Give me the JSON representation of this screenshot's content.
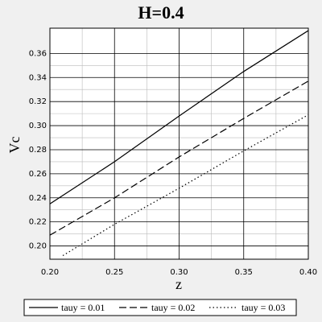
{
  "chart_data": {
    "type": "line",
    "title": "H=0.4",
    "x_label": "z",
    "y_label": "Vc",
    "xlim": [
      0.2,
      0.4
    ],
    "xticks": [
      {
        "value": 0.2,
        "label": "0.20"
      },
      0.25,
      {
        "value": 0.3,
        "label": "0.30"
      },
      0.35,
      {
        "value": 0.4,
        "label": "0.40"
      }
    ],
    "ylim": [
      0.189,
      0.381
    ],
    "yticks": [
      {
        "value": 0.2,
        "label": "0.20"
      },
      0.22,
      0.24,
      0.26,
      0.28,
      {
        "value": 0.3,
        "label": "0.30"
      },
      0.32,
      0.34,
      0.36
    ],
    "grid": true,
    "legend": "bottom",
    "series": [
      {
        "name": "tauy = 0.01",
        "color": "#000000",
        "dash": "solid",
        "x": [
          0.2,
          0.25,
          0.3,
          0.35,
          0.4
        ],
        "values": [
          0.235,
          0.27,
          0.308,
          0.345,
          0.379
        ]
      },
      {
        "name": "tauy = 0.02",
        "color": "#000000",
        "dash": "dashed",
        "x": [
          0.2,
          0.25,
          0.3,
          0.35,
          0.4
        ],
        "values": [
          0.209,
          0.24,
          0.274,
          0.306,
          0.337
        ]
      },
      {
        "name": "tauy = 0.03",
        "color": "#000000",
        "dash": "dotted",
        "x": [
          0.21,
          0.25,
          0.3,
          0.35,
          0.4
        ],
        "values": [
          0.192,
          0.218,
          0.248,
          0.279,
          0.309
        ]
      }
    ]
  }
}
